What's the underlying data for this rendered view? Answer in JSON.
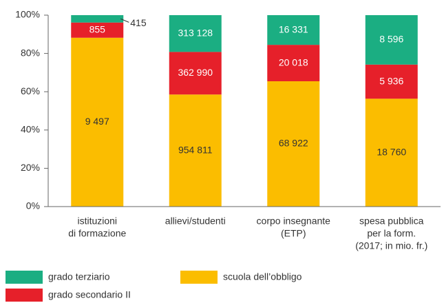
{
  "chart_data": {
    "type": "bar",
    "stacking": "percent",
    "categories": [
      [
        "istituzioni",
        "di formazione"
      ],
      [
        "allievi/studenti"
      ],
      [
        "corpo insegnante",
        "(ETP)"
      ],
      [
        "spesa pubblica",
        "per la form.",
        "(2017; in mio. fr.)"
      ]
    ],
    "series": [
      {
        "name": "grado terziario",
        "color": "#1bae82",
        "values": [
          415,
          313128,
          16331,
          8596
        ],
        "value_labels": [
          "415",
          "313 128",
          "16 331",
          "8 596"
        ]
      },
      {
        "name": "grado secondario II",
        "color": "#e6202a",
        "values": [
          855,
          362990,
          20018,
          5936
        ],
        "value_labels": [
          "855",
          "362 990",
          "20 018",
          "5 936"
        ]
      },
      {
        "name": "scuola dell’obbligo",
        "color": "#fbbd00",
        "values": [
          9497,
          954811,
          68922,
          18760
        ],
        "value_labels": [
          "9 497",
          "954 811",
          "68 922",
          "18 760"
        ]
      }
    ],
    "ylim": [
      0,
      100
    ],
    "yticks": [
      {
        "value": 0,
        "label": "0%"
      },
      {
        "value": 20,
        "label": "20%"
      },
      {
        "value": 40,
        "label": "40%"
      },
      {
        "value": 60,
        "label": "60%"
      },
      {
        "value": 80,
        "label": "80%"
      },
      {
        "value": 100,
        "label": "100%"
      }
    ],
    "grid": false
  }
}
